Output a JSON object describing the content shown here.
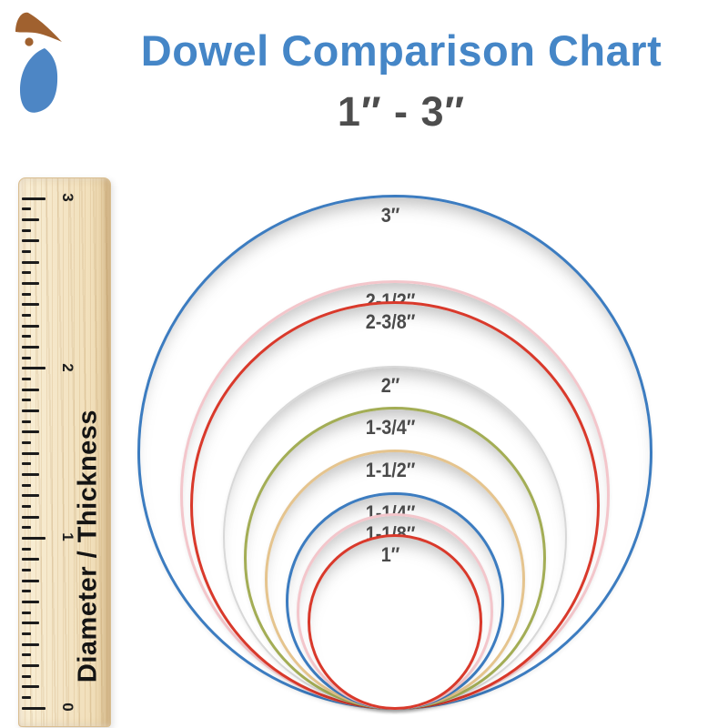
{
  "header": {
    "title": "Dowel Comparison Chart",
    "title_color": "#4586C7",
    "subtitle": "1″ - 3″",
    "subtitle_color": "#4D4D4D"
  },
  "logo": {
    "name": "woodpecker-logo",
    "roof_color": "#A0612F",
    "body_color": "#4D86C5"
  },
  "ruler": {
    "label": "Diameter / Thickness",
    "numbers": [
      "0",
      "1",
      "2",
      "3"
    ],
    "units": "inches",
    "range": [
      0,
      3
    ],
    "ticks_per_inch": 16,
    "tick_color": "#1c1c1c",
    "wood_color": "#f4e5c6"
  },
  "chart_data": {
    "type": "table",
    "representation": "concentric-tangent-circles",
    "title": "Dowel Comparison Chart",
    "subtitle": "1″ - 3″",
    "axis_label": "Diameter / Thickness",
    "axis_range_inches": [
      0,
      3
    ],
    "circles": [
      {
        "label": "3″",
        "diameter_in": 3.0,
        "color": "#3C7CC0",
        "stroke_px": 3
      },
      {
        "label": "2-1/2″",
        "diameter_in": 2.5,
        "color": "#F3C6CB",
        "stroke_px": 3
      },
      {
        "label": "2-3/8″",
        "diameter_in": 2.375,
        "color": "#D9392B",
        "stroke_px": 3
      },
      {
        "label": "2″",
        "diameter_in": 2.0,
        "color": "#D8D8D8",
        "stroke_px": 2
      },
      {
        "label": "1-3/4″",
        "diameter_in": 1.75,
        "color": "#A3AD55",
        "stroke_px": 3
      },
      {
        "label": "1-1/2″",
        "diameter_in": 1.5,
        "color": "#E5C48E",
        "stroke_px": 3
      },
      {
        "label": "1-1/4″",
        "diameter_in": 1.25,
        "color": "#3C7CC0",
        "stroke_px": 3
      },
      {
        "label": "1-1/8″",
        "diameter_in": 1.125,
        "color": "#F3C6CB",
        "stroke_px": 3
      },
      {
        "label": "1″",
        "diameter_in": 1.0,
        "color": "#D9392B",
        "stroke_px": 3
      }
    ]
  }
}
